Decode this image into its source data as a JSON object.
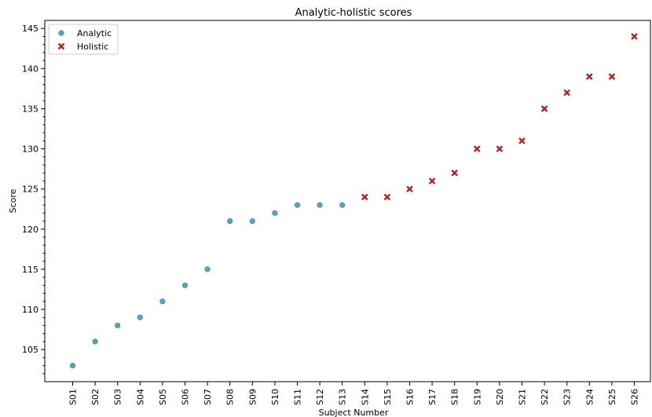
{
  "chart_data": {
    "type": "scatter",
    "title": "Analytic-holistic scores",
    "xlabel": "Subject Number",
    "ylabel": "Score",
    "categories": [
      "S01",
      "S02",
      "S03",
      "S04",
      "S05",
      "S06",
      "S07",
      "S08",
      "S09",
      "S10",
      "S11",
      "S12",
      "S13",
      "S14",
      "S15",
      "S16",
      "S17",
      "S18",
      "S19",
      "S20",
      "S21",
      "S22",
      "S23",
      "S24",
      "S25",
      "S26"
    ],
    "ylim": [
      101,
      146
    ],
    "yticks": [
      105,
      110,
      115,
      120,
      125,
      130,
      135,
      140,
      145
    ],
    "grid": false,
    "legend_position": "top-left",
    "series": [
      {
        "name": "Analytic",
        "marker": "circle",
        "color": "#5ba3b8",
        "categories": [
          "S01",
          "S02",
          "S03",
          "S04",
          "S05",
          "S06",
          "S07",
          "S08",
          "S09",
          "S10",
          "S11",
          "S12",
          "S13"
        ],
        "values": [
          103,
          106,
          108,
          109,
          111,
          113,
          115,
          121,
          121,
          122,
          123,
          123,
          123
        ]
      },
      {
        "name": "Holistic",
        "marker": "x",
        "color": "#b22222",
        "categories": [
          "S14",
          "S15",
          "S16",
          "S17",
          "S18",
          "S19",
          "S20",
          "S21",
          "S22",
          "S23",
          "S24",
          "S25",
          "S26"
        ],
        "values": [
          124,
          124,
          125,
          126,
          127,
          130,
          130,
          131,
          135,
          137,
          139,
          139,
          144
        ]
      }
    ]
  }
}
